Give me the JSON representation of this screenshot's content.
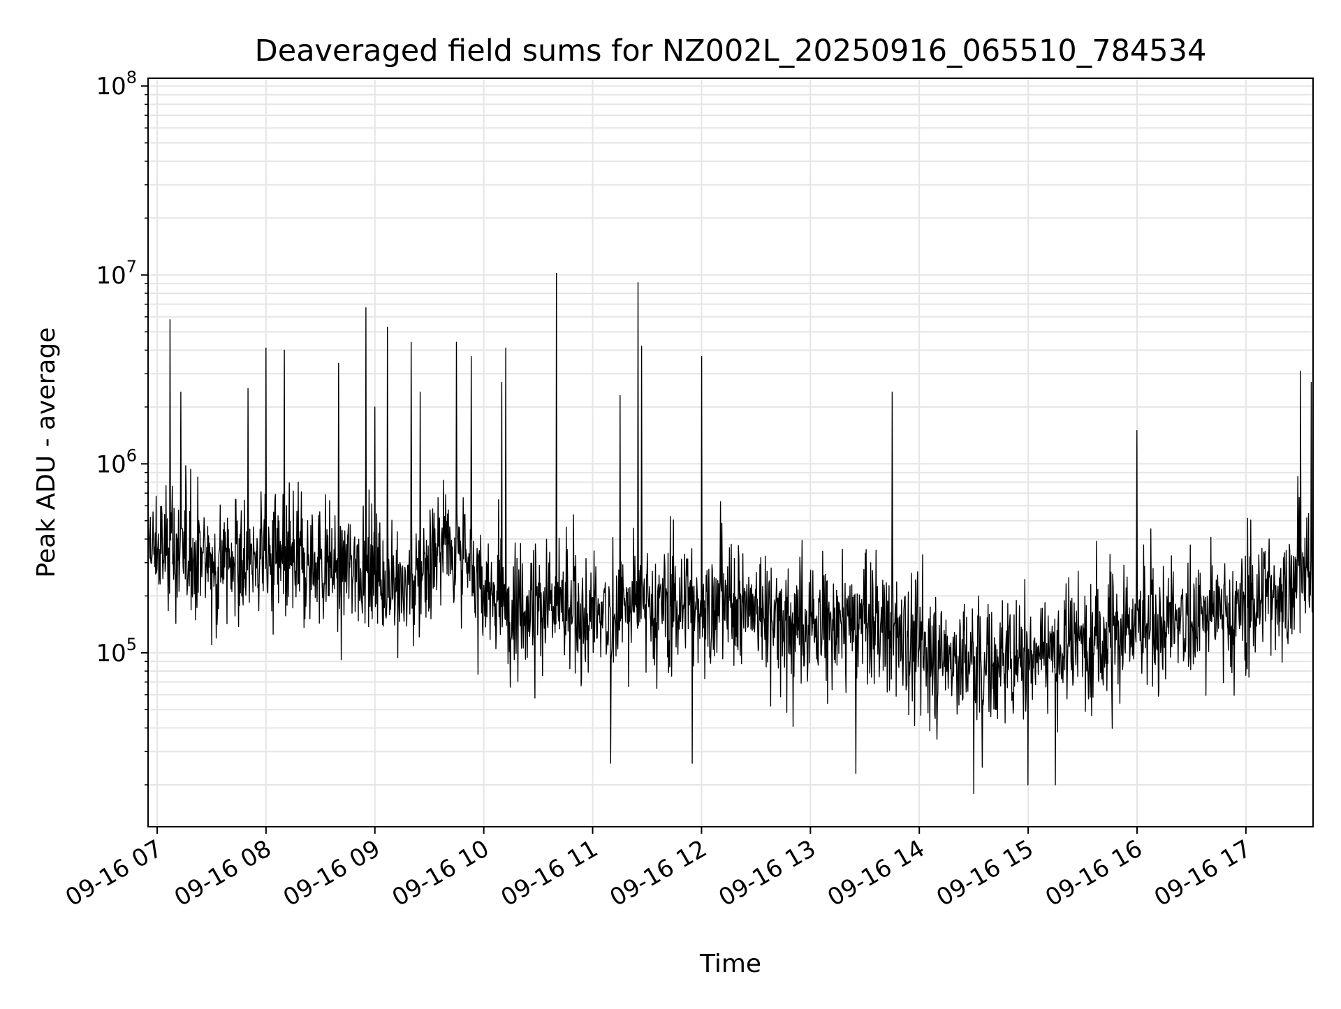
{
  "chart_data": {
    "type": "line",
    "title": "Deaveraged field sums for NZ002L_20250916_065510_784534",
    "xlabel": "Time",
    "ylabel": "Peak ADU - average",
    "y_scale": "log",
    "ylim": [
      12000,
      110000000
    ],
    "xlim": [
      "2025-09-16T06:55",
      "2025-09-16T17:37"
    ],
    "grid": true,
    "line_color": "#000000",
    "grid_color": "#e5e5e5",
    "x_ticks": [
      {
        "t": "2025-09-16T07:00",
        "label": "09-16 07"
      },
      {
        "t": "2025-09-16T08:00",
        "label": "09-16 08"
      },
      {
        "t": "2025-09-16T09:00",
        "label": "09-16 09"
      },
      {
        "t": "2025-09-16T10:00",
        "label": "09-16 10"
      },
      {
        "t": "2025-09-16T11:00",
        "label": "09-16 11"
      },
      {
        "t": "2025-09-16T12:00",
        "label": "09-16 12"
      },
      {
        "t": "2025-09-16T13:00",
        "label": "09-16 13"
      },
      {
        "t": "2025-09-16T14:00",
        "label": "09-16 14"
      },
      {
        "t": "2025-09-16T15:00",
        "label": "09-16 15"
      },
      {
        "t": "2025-09-16T16:00",
        "label": "09-16 16"
      },
      {
        "t": "2025-09-16T17:00",
        "label": "09-16 17"
      }
    ],
    "y_ticks": [
      {
        "value": 100000,
        "base": "10",
        "exp": "5"
      },
      {
        "value": 1000000,
        "base": "10",
        "exp": "6"
      },
      {
        "value": 10000000,
        "base": "10",
        "exp": "7"
      },
      {
        "value": 100000000,
        "base": "10",
        "exp": "8"
      }
    ],
    "baseline": [
      {
        "t": "2025-09-16T06:55",
        "v": 350000
      },
      {
        "t": "2025-09-16T07:30",
        "v": 320000
      },
      {
        "t": "2025-09-16T08:00",
        "v": 300000
      },
      {
        "t": "2025-09-16T08:30",
        "v": 290000
      },
      {
        "t": "2025-09-16T09:00",
        "v": 280000
      },
      {
        "t": "2025-09-16T09:20",
        "v": 200000
      },
      {
        "t": "2025-09-16T09:40",
        "v": 450000
      },
      {
        "t": "2025-09-16T10:00",
        "v": 200000
      },
      {
        "t": "2025-09-16T10:30",
        "v": 180000
      },
      {
        "t": "2025-09-16T11:00",
        "v": 150000
      },
      {
        "t": "2025-09-16T11:30",
        "v": 190000
      },
      {
        "t": "2025-09-16T12:00",
        "v": 180000
      },
      {
        "t": "2025-09-16T12:30",
        "v": 170000
      },
      {
        "t": "2025-09-16T13:00",
        "v": 140000
      },
      {
        "t": "2025-09-16T13:30",
        "v": 150000
      },
      {
        "t": "2025-09-16T14:00",
        "v": 110000
      },
      {
        "t": "2025-09-16T14:30",
        "v": 85000
      },
      {
        "t": "2025-09-16T15:00",
        "v": 100000
      },
      {
        "t": "2025-09-16T15:30",
        "v": 120000
      },
      {
        "t": "2025-09-16T16:00",
        "v": 130000
      },
      {
        "t": "2025-09-16T16:30",
        "v": 150000
      },
      {
        "t": "2025-09-16T17:00",
        "v": 180000
      },
      {
        "t": "2025-09-16T17:37",
        "v": 260000
      }
    ],
    "spikes": [
      {
        "t": "2025-09-16T07:07",
        "v": 5800000
      },
      {
        "t": "2025-09-16T07:13",
        "v": 2400000
      },
      {
        "t": "2025-09-16T07:50",
        "v": 2500000
      },
      {
        "t": "2025-09-16T08:00",
        "v": 4100000
      },
      {
        "t": "2025-09-16T08:10",
        "v": 4000000
      },
      {
        "t": "2025-09-16T08:40",
        "v": 3400000
      },
      {
        "t": "2025-09-16T08:55",
        "v": 6700000
      },
      {
        "t": "2025-09-16T09:00",
        "v": 2000000
      },
      {
        "t": "2025-09-16T09:07",
        "v": 5300000
      },
      {
        "t": "2025-09-16T09:20",
        "v": 4400000
      },
      {
        "t": "2025-09-16T09:25",
        "v": 2400000
      },
      {
        "t": "2025-09-16T09:45",
        "v": 4400000
      },
      {
        "t": "2025-09-16T09:53",
        "v": 3700000
      },
      {
        "t": "2025-09-16T10:10",
        "v": 2700000
      },
      {
        "t": "2025-09-16T10:12",
        "v": 4100000
      },
      {
        "t": "2025-09-16T10:40",
        "v": 10200000
      },
      {
        "t": "2025-09-16T11:15",
        "v": 2300000
      },
      {
        "t": "2025-09-16T11:25",
        "v": 9100000
      },
      {
        "t": "2025-09-16T11:27",
        "v": 4200000
      },
      {
        "t": "2025-09-16T12:00",
        "v": 3700000
      },
      {
        "t": "2025-09-16T13:45",
        "v": 2400000
      },
      {
        "t": "2025-09-16T16:00",
        "v": 1500000
      },
      {
        "t": "2025-09-16T17:30",
        "v": 3100000
      },
      {
        "t": "2025-09-16T17:36",
        "v": 2700000
      }
    ],
    "minima": [
      {
        "t": "2025-09-16T11:10",
        "v": 26000
      },
      {
        "t": "2025-09-16T11:55",
        "v": 26000
      },
      {
        "t": "2025-09-16T13:25",
        "v": 23000
      },
      {
        "t": "2025-09-16T14:30",
        "v": 18000
      },
      {
        "t": "2025-09-16T15:00",
        "v": 20000
      },
      {
        "t": "2025-09-16T15:15",
        "v": 20000
      }
    ]
  }
}
